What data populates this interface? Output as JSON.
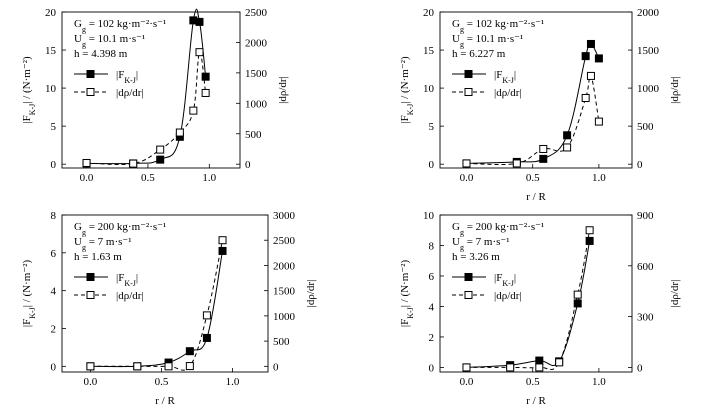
{
  "chart_data": [
    {
      "type": "line",
      "panel": "top-left",
      "annotations": [
        "G_g = 102 kg·m⁻²·s⁻¹",
        "U_g = 10.1 m·s⁻¹",
        "h = 4.398 m"
      ],
      "xlabel": "",
      "ylabel": "|F_K-J| / (N·m⁻²)",
      "y2label": "|dρ/dr|",
      "xlim": [
        -0.2,
        1.25
      ],
      "ylim": [
        -0.5,
        20
      ],
      "y2lim": [
        -62.5,
        2500
      ],
      "xticks": [
        "0.0",
        "0.5",
        "1.0"
      ],
      "yticks": [
        "0",
        "5",
        "10",
        "15",
        "20"
      ],
      "y2ticks": [
        "0",
        "500",
        "1000",
        "1500",
        "2000",
        "2500"
      ],
      "legend": [
        "|F_K-J|",
        "|dρ/dr|"
      ],
      "series": [
        {
          "name": "|F_K-J|",
          "axis": "left",
          "style": "solid",
          "x": [
            0.0,
            0.38,
            0.6,
            0.76,
            0.87,
            0.92,
            0.97
          ],
          "y": [
            0.1,
            0.1,
            0.6,
            3.6,
            18.9,
            18.7,
            11.5
          ]
        },
        {
          "name": "|dρ/dr|",
          "axis": "right",
          "style": "dashed",
          "x": [
            0.0,
            0.38,
            0.6,
            0.76,
            0.87,
            0.92,
            0.97
          ],
          "y": [
            20,
            10,
            240,
            520,
            880,
            1840,
            1170
          ]
        }
      ]
    },
    {
      "type": "line",
      "panel": "top-right",
      "annotations": [
        "G_g = 102 kg·m⁻²·s⁻¹",
        "U_g = 10.1 m·s⁻¹",
        "h = 6.227 m"
      ],
      "xlabel": "r / R",
      "ylabel": "|F_K-J| / (N·m⁻²)",
      "y2label": "|dρ/dr|",
      "xlim": [
        -0.2,
        1.25
      ],
      "ylim": [
        -0.5,
        20
      ],
      "y2lim": [
        -50,
        2000
      ],
      "xticks": [
        "0.0",
        "0.5",
        "1.0"
      ],
      "yticks": [
        "0",
        "5",
        "10",
        "15",
        "20"
      ],
      "y2ticks": [
        "0",
        "500",
        "1000",
        "1500",
        "2000"
      ],
      "legend": [
        "|F_K-J|",
        "|dρ/dr|"
      ],
      "series": [
        {
          "name": "|F_K-J|",
          "axis": "left",
          "style": "solid",
          "x": [
            0.0,
            0.38,
            0.58,
            0.76,
            0.9,
            0.94,
            1.0
          ],
          "y": [
            0.1,
            0.3,
            0.7,
            3.8,
            14.2,
            15.8,
            13.9
          ]
        },
        {
          "name": "|dρ/dr|",
          "axis": "right",
          "style": "dashed",
          "x": [
            0.0,
            0.38,
            0.58,
            0.76,
            0.9,
            0.94,
            1.0
          ],
          "y": [
            10,
            10,
            200,
            220,
            870,
            1160,
            560
          ]
        }
      ]
    },
    {
      "type": "line",
      "panel": "bottom-left",
      "annotations": [
        "G_g = 200 kg·m⁻²·s⁻¹",
        "U_g = 7 m·s⁻¹",
        "h = 1.63 m"
      ],
      "xlabel": "r / R",
      "ylabel": "|F_K-J| / (N·m⁻²)",
      "y2label": "|dρ/dr|",
      "xlim": [
        -0.2,
        1.25
      ],
      "ylim": [
        -0.3,
        8
      ],
      "y2lim": [
        -112.5,
        3000
      ],
      "xticks": [
        "0.0",
        "0.5",
        "1.0"
      ],
      "yticks": [
        "0",
        "2",
        "4",
        "6",
        "8"
      ],
      "y2ticks": [
        "0",
        "500",
        "1000",
        "1500",
        "2000",
        "2500",
        "3000"
      ],
      "legend": [
        "|F_K-J|",
        "|dρ/dr|"
      ],
      "series": [
        {
          "name": "|F_K-J|",
          "axis": "left",
          "style": "solid",
          "x": [
            0.0,
            0.33,
            0.55,
            0.7,
            0.82,
            0.93
          ],
          "y": [
            0.0,
            0.0,
            0.2,
            0.8,
            1.5,
            6.1
          ]
        },
        {
          "name": "|dρ/dr|",
          "axis": "right",
          "style": "dashed",
          "x": [
            0.0,
            0.33,
            0.55,
            0.7,
            0.82,
            0.93
          ],
          "y": [
            0,
            0,
            0,
            5,
            1010,
            2500
          ]
        }
      ]
    },
    {
      "type": "line",
      "panel": "bottom-right",
      "annotations": [
        "G_g = 200 kg·m⁻²·s⁻¹",
        "U_g = 7 m·s⁻¹",
        "h = 3.26 m"
      ],
      "xlabel": "r / R",
      "ylabel": "|F_K-J| / (N·m⁻²)",
      "y2label": "|dρ/dr|",
      "xlim": [
        -0.2,
        1.25
      ],
      "ylim": [
        -0.3,
        10
      ],
      "y2lim": [
        -27,
        900
      ],
      "xticks": [
        "0.0",
        "0.5",
        "1.0"
      ],
      "yticks": [
        "0",
        "2",
        "4",
        "6",
        "8",
        "10"
      ],
      "y2ticks": [
        "0",
        "300",
        "600",
        "900"
      ],
      "legend": [
        "|F_K-J|",
        "|dρ/dr|"
      ],
      "series": [
        {
          "name": "|F_K-J|",
          "axis": "left",
          "style": "solid",
          "x": [
            0.0,
            0.33,
            0.55,
            0.7,
            0.84,
            0.93
          ],
          "y": [
            0.0,
            0.15,
            0.45,
            0.4,
            4.2,
            8.3
          ]
        },
        {
          "name": "|dρ/dr|",
          "axis": "right",
          "style": "dashed",
          "x": [
            0.0,
            0.33,
            0.55,
            0.7,
            0.84,
            0.93
          ],
          "y": [
            0,
            0,
            0,
            30,
            430,
            810
          ]
        }
      ]
    }
  ]
}
